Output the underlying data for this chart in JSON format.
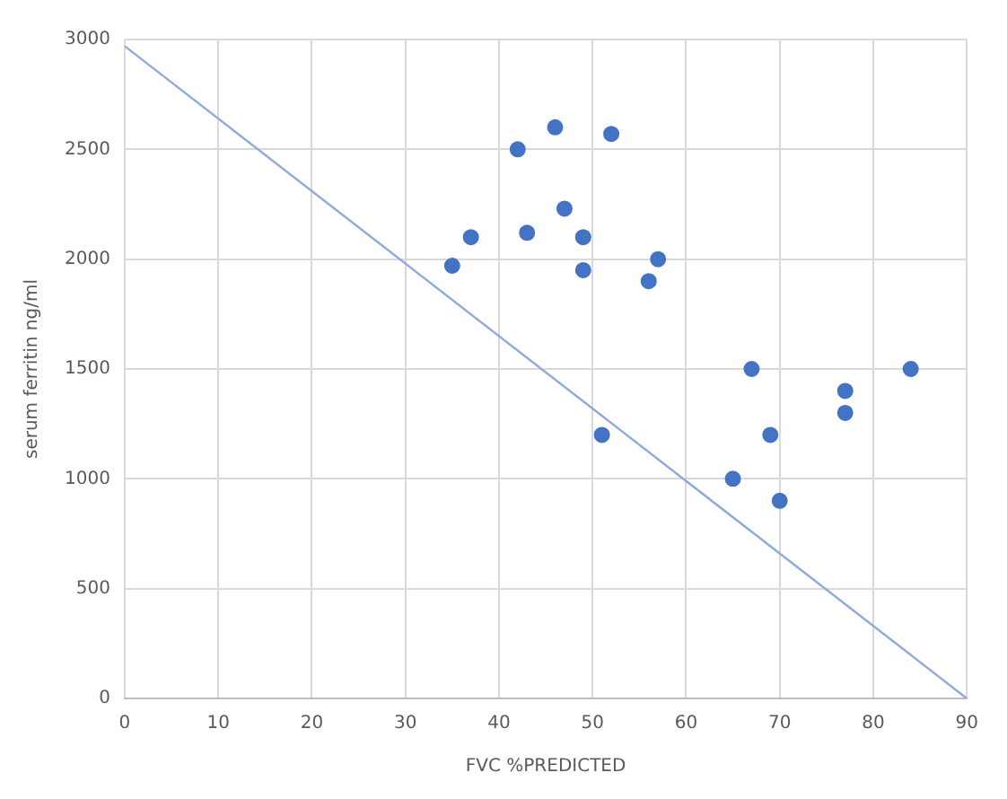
{
  "chart_data": {
    "type": "scatter",
    "xlabel": "FVC %PREDICTED",
    "ylabel": "serum ferritin ng/ml",
    "xlim": [
      0,
      90
    ],
    "xticks": [
      0,
      10,
      20,
      30,
      40,
      50,
      60,
      70,
      80,
      90
    ],
    "ylim": [
      0,
      3000
    ],
    "yticks": [
      0,
      500,
      1000,
      1500,
      2000,
      2500,
      3000
    ],
    "grid": true,
    "legend": false,
    "marker": "circle",
    "series": [
      {
        "type": "scatter",
        "color": "#4472c4",
        "x": [
          35,
          37,
          42,
          43,
          46,
          47,
          49,
          49,
          52,
          51,
          56,
          57,
          65,
          67,
          69,
          70,
          77,
          77,
          84
        ],
        "values": [
          1970,
          2100,
          2500,
          2120,
          2600,
          2230,
          2100,
          1950,
          2570,
          1200,
          1900,
          2000,
          1000,
          1500,
          1200,
          900,
          1400,
          1300,
          1500
        ]
      },
      {
        "type": "line",
        "color": "#8eaadb",
        "x": [
          0,
          90
        ],
        "values": [
          2970,
          0
        ],
        "marker": "none",
        "line_style": "solid"
      }
    ]
  }
}
